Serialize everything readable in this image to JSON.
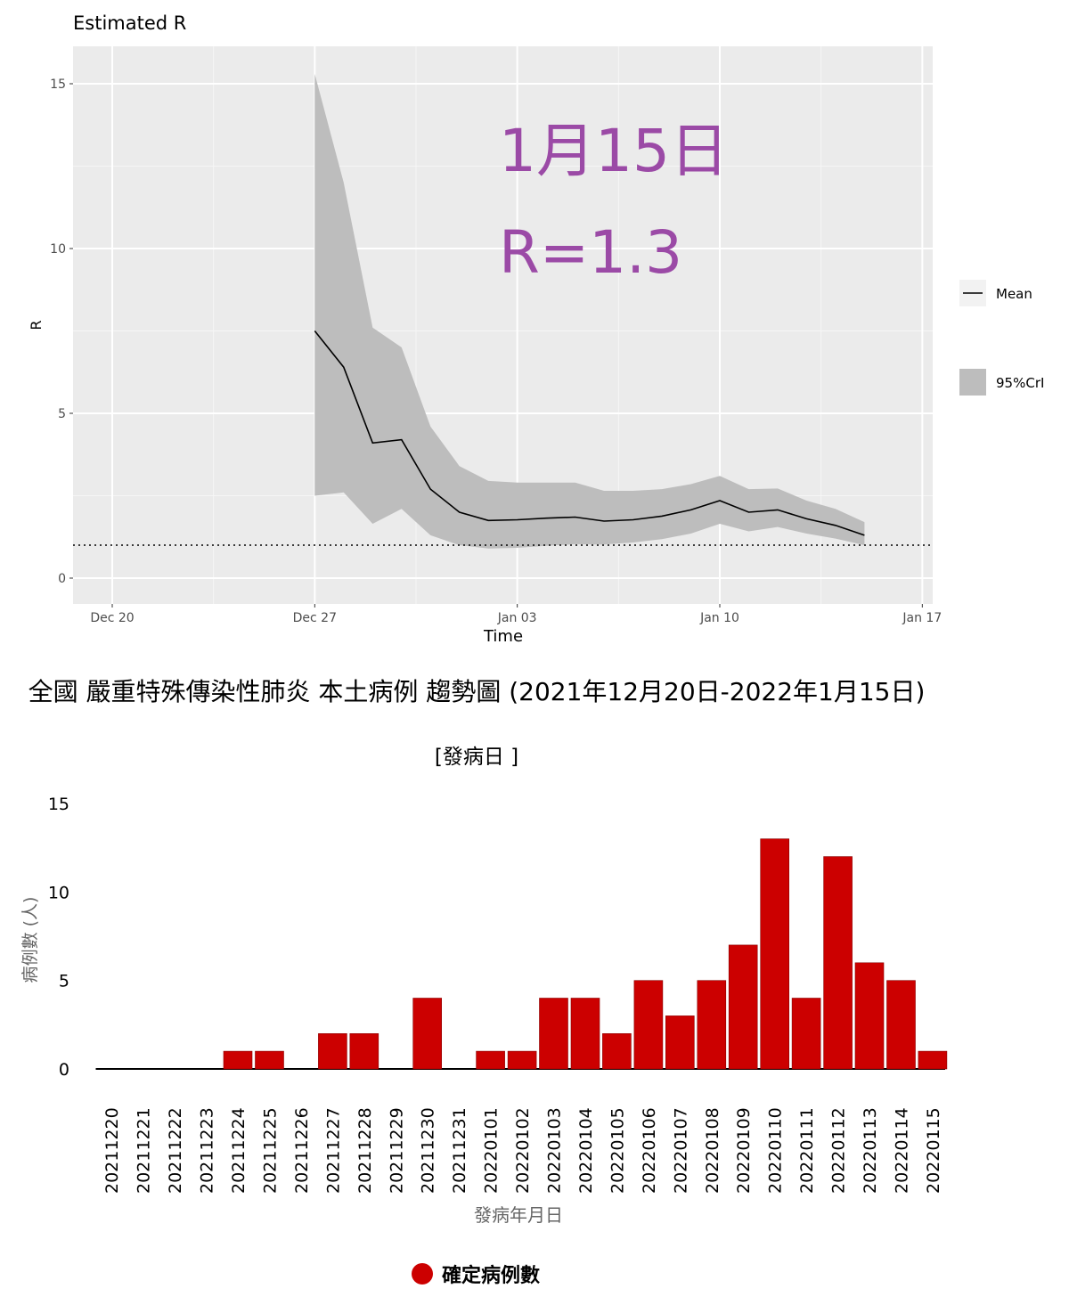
{
  "chart_data": [
    {
      "type": "line",
      "title": "Estimated R",
      "xlabel": "Time",
      "ylabel": "R",
      "ylim": [
        0,
        15
      ],
      "yticks": [
        "0",
        "5",
        "10",
        "15"
      ],
      "xticks": [
        "Dec 20",
        "Dec 27",
        "Jan 03",
        "Jan 10",
        "Jan 17"
      ],
      "grid": true,
      "reference_line": 1,
      "annotation": [
        "1月15日",
        "R=1.3"
      ],
      "legend_position": "right",
      "legend": [
        "Mean",
        "95%CrI"
      ],
      "x": [
        "2021-12-27",
        "2021-12-28",
        "2021-12-29",
        "2021-12-30",
        "2021-12-31",
        "2022-01-01",
        "2022-01-02",
        "2022-01-03",
        "2022-01-04",
        "2022-01-05",
        "2022-01-06",
        "2022-01-07",
        "2022-01-08",
        "2022-01-09",
        "2022-01-10",
        "2022-01-11",
        "2022-01-12",
        "2022-01-13",
        "2022-01-14",
        "2022-01-15"
      ],
      "series": [
        {
          "name": "Mean",
          "values": [
            7.5,
            6.4,
            4.1,
            4.2,
            2.7,
            2.0,
            1.75,
            1.77,
            1.82,
            1.85,
            1.73,
            1.77,
            1.88,
            2.07,
            2.35,
            2.0,
            2.07,
            1.8,
            1.6,
            1.3
          ]
        },
        {
          "name": "95%CrI",
          "lower": [
            2.5,
            2.6,
            1.65,
            2.1,
            1.3,
            1.0,
            0.9,
            0.92,
            0.98,
            1.03,
            1.02,
            1.08,
            1.18,
            1.35,
            1.65,
            1.42,
            1.55,
            1.35,
            1.2,
            1.0
          ],
          "upper": [
            15.3,
            12.0,
            7.6,
            7.0,
            4.6,
            3.4,
            2.95,
            2.9,
            2.9,
            2.9,
            2.65,
            2.65,
            2.7,
            2.85,
            3.1,
            2.7,
            2.72,
            2.35,
            2.1,
            1.7
          ]
        }
      ],
      "colors": {
        "mean": "#000000",
        "ribbon": "#bdbdbd",
        "annotation": "#9b4aa6",
        "panel": "#ebebeb"
      }
    },
    {
      "type": "bar",
      "title": "全國 嚴重特殊傳染性肺炎 本土病例 趨勢圖 (2021年12月20日-2022年1月15日)",
      "subtitle": "[發病日 ]",
      "xlabel": "發病年月日",
      "ylabel": "病例數 (人)",
      "ylim": [
        0,
        15
      ],
      "yticks": [
        "0",
        "5",
        "10",
        "15"
      ],
      "categories": [
        "20211220",
        "20211221",
        "20211222",
        "20211223",
        "20211224",
        "20211225",
        "20211226",
        "20211227",
        "20211228",
        "20211229",
        "20211230",
        "20211231",
        "20220101",
        "20220102",
        "20220103",
        "20220104",
        "20220105",
        "20220106",
        "20220107",
        "20220108",
        "20220109",
        "20220110",
        "20220111",
        "20220112",
        "20220113",
        "20220114",
        "20220115"
      ],
      "series": [
        {
          "name": "確定病例數",
          "values": [
            0,
            0,
            0,
            0,
            1,
            1,
            0,
            2,
            2,
            0,
            4,
            0,
            1,
            1,
            4,
            4,
            2,
            5,
            3,
            5,
            7,
            13,
            4,
            12,
            6,
            5,
            1
          ]
        }
      ],
      "legend_position": "bottom",
      "colors": {
        "bar": "#cc0000"
      }
    }
  ]
}
